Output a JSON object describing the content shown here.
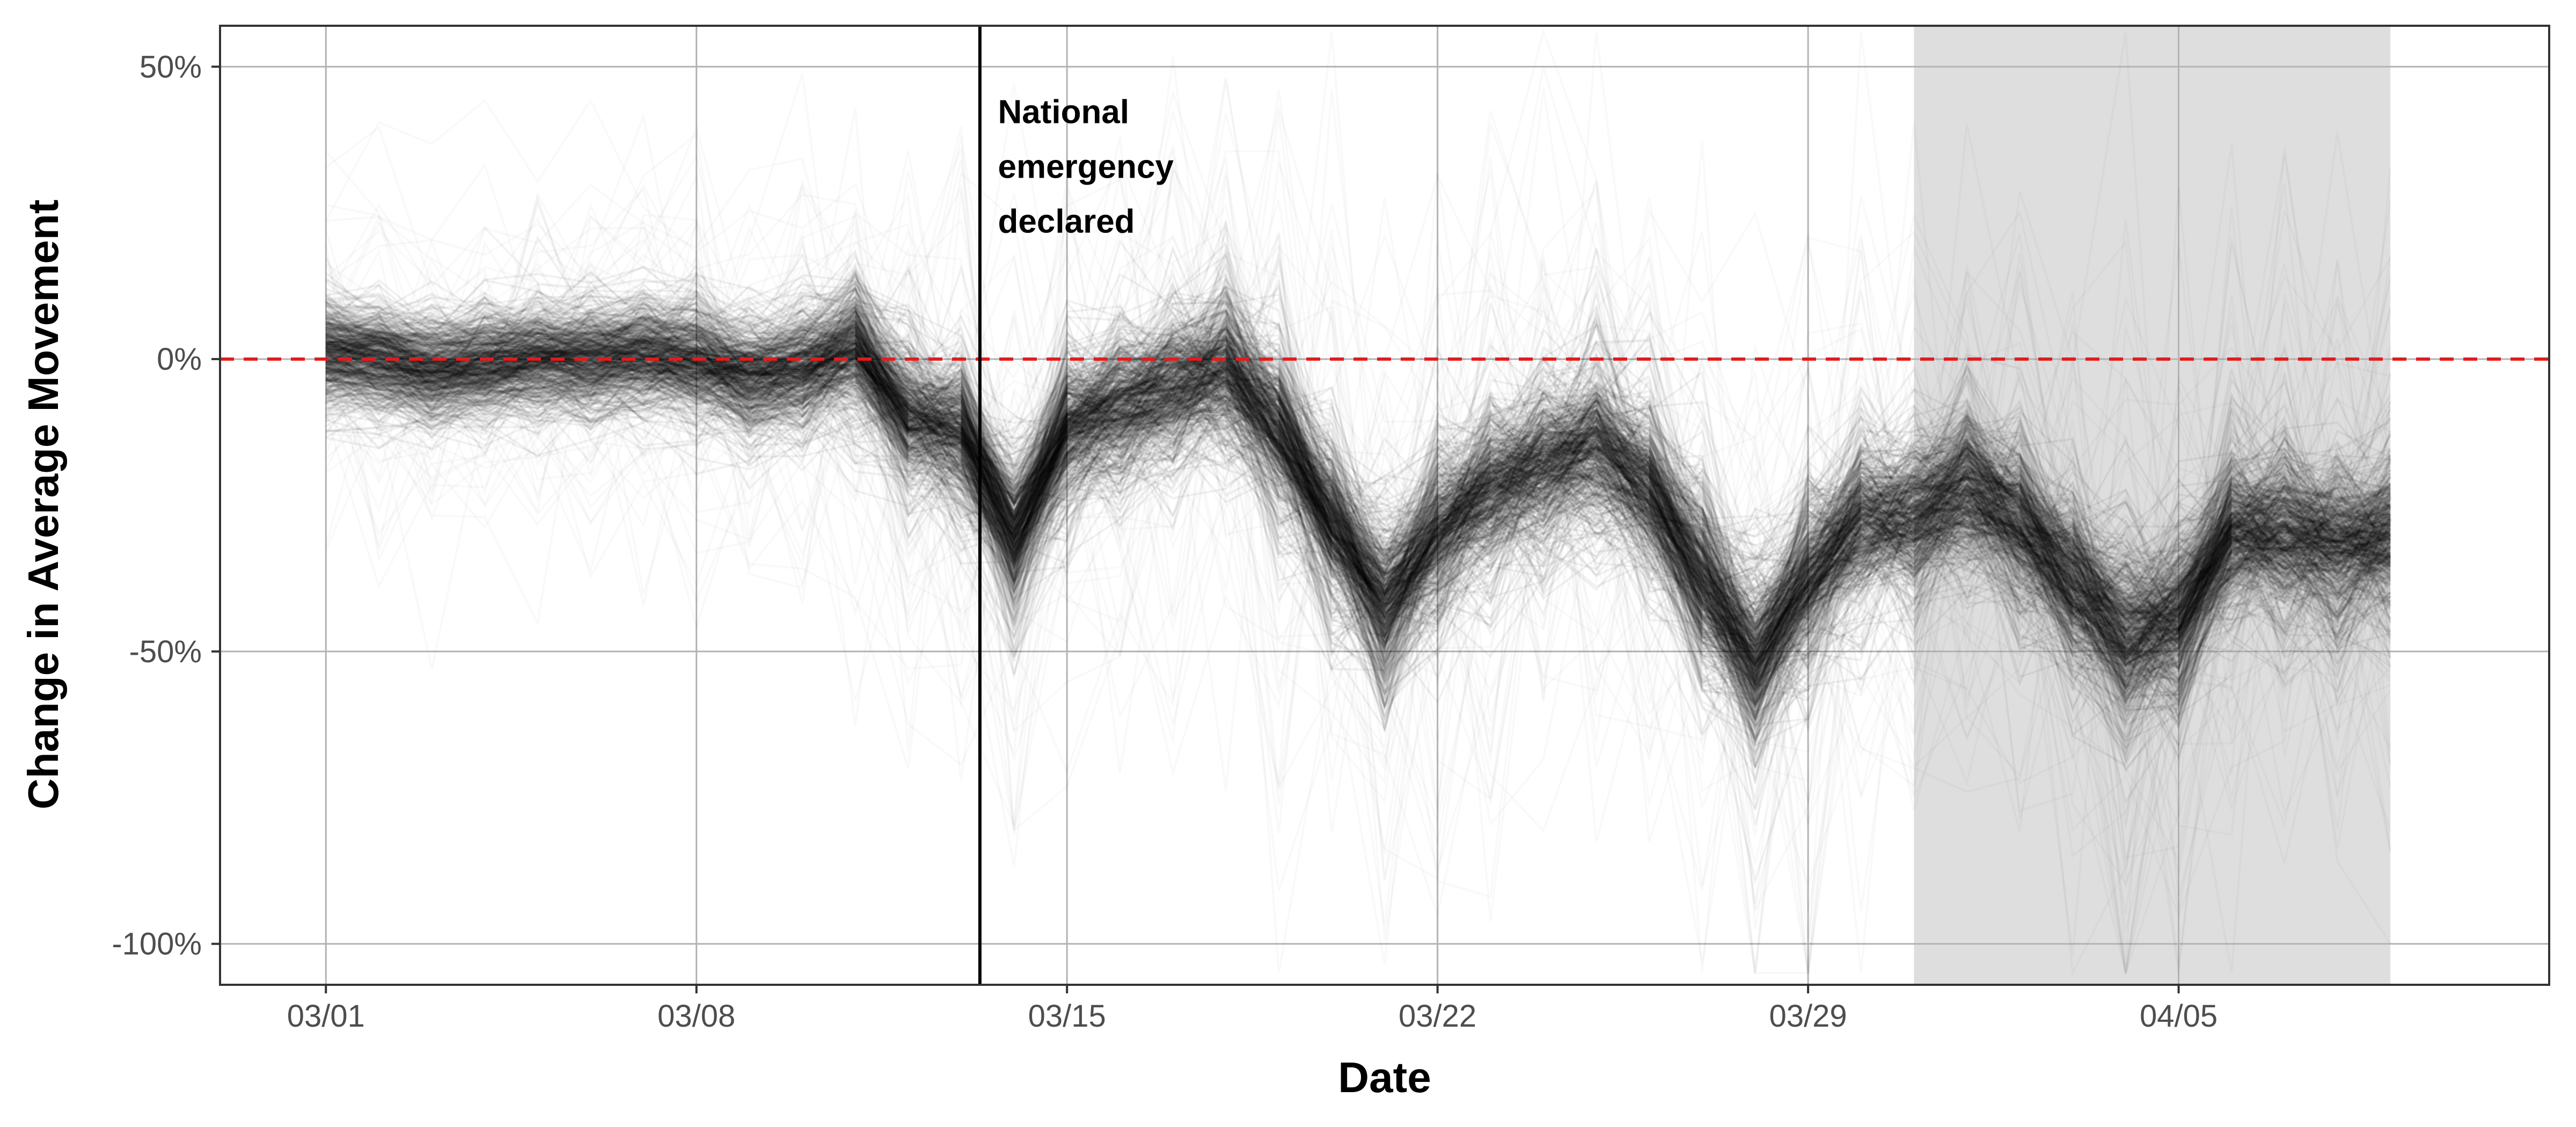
{
  "chart_data": {
    "type": "line",
    "title": "",
    "xlabel": "Date",
    "ylabel": "Change in Average Movement",
    "x_range": [
      "02/28",
      "04/12"
    ],
    "ylim": [
      -107,
      57
    ],
    "x_ticks": [
      "03/01",
      "03/08",
      "03/15",
      "03/22",
      "03/29",
      "04/05"
    ],
    "y_ticks": [
      {
        "value": 50,
        "label": "50%"
      },
      {
        "value": 0,
        "label": "0%"
      },
      {
        "value": -50,
        "label": "-50%"
      },
      {
        "value": -100,
        "label": "-100%"
      }
    ],
    "grid": true,
    "reference_line": {
      "value": 0,
      "style": "dashed",
      "color": "#e41a1c"
    },
    "event_line": {
      "date": "03/13",
      "color": "#000000"
    },
    "annotation": {
      "date": "03/14",
      "y": 33,
      "lines": [
        "National",
        "emergency",
        "declared"
      ]
    },
    "shaded_period": {
      "start": "03/31",
      "end": "04/09",
      "color": "#dedede"
    },
    "series_summary": {
      "description": "Many faint overlapping per-region lines",
      "color": "#000000",
      "dates": [
        "03/01",
        "03/02",
        "03/03",
        "03/04",
        "03/05",
        "03/06",
        "03/07",
        "03/08",
        "03/09",
        "03/10",
        "03/11",
        "03/12",
        "03/13",
        "03/14",
        "03/15",
        "03/16",
        "03/17",
        "03/18",
        "03/19",
        "03/20",
        "03/21",
        "03/22",
        "03/23",
        "03/24",
        "03/25",
        "03/26",
        "03/27",
        "03/28",
        "03/29",
        "03/30",
        "03/31",
        "04/01",
        "04/02",
        "04/03",
        "04/04",
        "04/05",
        "04/06",
        "04/07",
        "04/08",
        "04/09"
      ],
      "median": [
        1,
        0,
        -2,
        -1,
        0,
        0,
        1,
        0,
        -3,
        -2,
        2,
        -10,
        -13,
        -30,
        -12,
        -8,
        -5,
        -2,
        -12,
        -28,
        -42,
        -30,
        -22,
        -18,
        -15,
        -22,
        -38,
        -52,
        -38,
        -28,
        -27,
        -22,
        -28,
        -38,
        -48,
        -44,
        -30,
        -30,
        -32,
        -30
      ],
      "spread": [
        6,
        6,
        6,
        6,
        6,
        6,
        7,
        8,
        8,
        8,
        10,
        12,
        12,
        14,
        12,
        12,
        12,
        13,
        14,
        14,
        15,
        14,
        14,
        14,
        14,
        14,
        15,
        15,
        15,
        14,
        14,
        14,
        14,
        15,
        16,
        15,
        14,
        14,
        14,
        14
      ]
    },
    "colors": {
      "panel_border": "#333333",
      "grid": "#b3b3b3",
      "shade": "#dedede",
      "zero_line": "#e41a1c",
      "lines": "#000000"
    }
  }
}
